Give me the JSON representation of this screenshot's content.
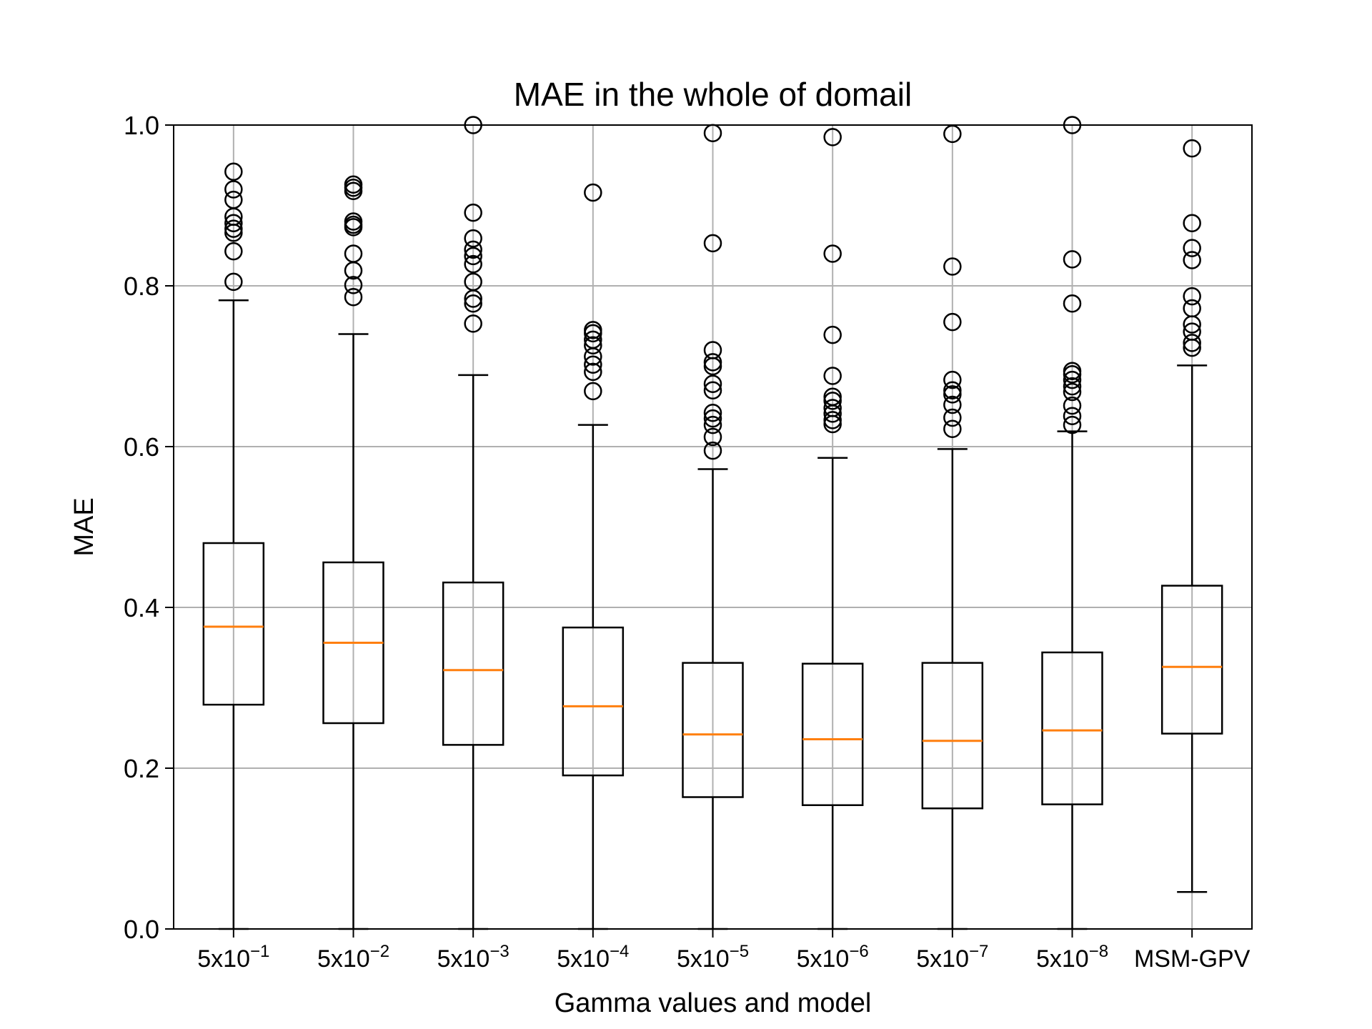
{
  "chart_data": {
    "type": "box",
    "title": "MAE in the whole of domail",
    "xlabel": "Gamma values and model",
    "ylabel": "MAE",
    "ylim": [
      0.0,
      1.0
    ],
    "yticks": [
      "0.0",
      "0.2",
      "0.4",
      "0.6",
      "0.8",
      "1.0"
    ],
    "grid": true,
    "colors": {
      "box": "#000000",
      "median": "#ff7f0e",
      "grid": "#b0b0b0"
    },
    "categories": [
      {
        "base": "5x10",
        "exp": "−1"
      },
      {
        "base": "5x10",
        "exp": "−2"
      },
      {
        "base": "5x10",
        "exp": "−3"
      },
      {
        "base": "5x10",
        "exp": "−4"
      },
      {
        "base": "5x10",
        "exp": "−5"
      },
      {
        "base": "5x10",
        "exp": "−6"
      },
      {
        "base": "5x10",
        "exp": "−7"
      },
      {
        "base": "5x10",
        "exp": "−8"
      },
      {
        "base": "MSM-GPV",
        "exp": ""
      }
    ],
    "boxes": [
      {
        "whislo": 0.0,
        "q1": 0.279,
        "med": 0.376,
        "q3": 0.48,
        "whishi": 0.782,
        "fliers": [
          0.805,
          0.843,
          0.866,
          0.871,
          0.878,
          0.886,
          0.907,
          0.92,
          0.942
        ]
      },
      {
        "whislo": 0.0,
        "q1": 0.256,
        "med": 0.356,
        "q3": 0.456,
        "whishi": 0.74,
        "fliers": [
          0.786,
          0.801,
          0.819,
          0.84,
          0.873,
          0.876,
          0.88,
          0.918,
          0.922,
          0.926
        ]
      },
      {
        "whislo": 0.0,
        "q1": 0.229,
        "med": 0.322,
        "q3": 0.431,
        "whishi": 0.689,
        "fliers": [
          0.753,
          0.778,
          0.784,
          0.805,
          0.827,
          0.837,
          0.845,
          0.859,
          0.891,
          1.0
        ]
      },
      {
        "whislo": 0.0,
        "q1": 0.191,
        "med": 0.277,
        "q3": 0.375,
        "whishi": 0.627,
        "fliers": [
          0.669,
          0.693,
          0.702,
          0.712,
          0.726,
          0.733,
          0.741,
          0.745,
          0.916
        ]
      },
      {
        "whislo": 0.0,
        "q1": 0.164,
        "med": 0.242,
        "q3": 0.331,
        "whishi": 0.572,
        "fliers": [
          0.595,
          0.612,
          0.627,
          0.635,
          0.642,
          0.67,
          0.678,
          0.7,
          0.705,
          0.72,
          0.853,
          0.99
        ]
      },
      {
        "whislo": 0.0,
        "q1": 0.154,
        "med": 0.236,
        "q3": 0.33,
        "whishi": 0.586,
        "fliers": [
          0.628,
          0.633,
          0.641,
          0.648,
          0.657,
          0.662,
          0.688,
          0.739,
          0.84,
          0.985
        ]
      },
      {
        "whislo": 0.0,
        "q1": 0.15,
        "med": 0.234,
        "q3": 0.331,
        "whishi": 0.597,
        "fliers": [
          0.622,
          0.636,
          0.652,
          0.665,
          0.67,
          0.683,
          0.755,
          0.824,
          0.989
        ]
      },
      {
        "whislo": 0.0,
        "q1": 0.155,
        "med": 0.247,
        "q3": 0.344,
        "whishi": 0.619,
        "fliers": [
          0.627,
          0.638,
          0.651,
          0.668,
          0.675,
          0.683,
          0.69,
          0.694,
          0.778,
          0.833,
          1.0
        ]
      },
      {
        "whislo": 0.046,
        "q1": 0.243,
        "med": 0.326,
        "q3": 0.427,
        "whishi": 0.701,
        "fliers": [
          0.723,
          0.729,
          0.743,
          0.752,
          0.772,
          0.787,
          0.832,
          0.847,
          0.878,
          0.971
        ]
      }
    ]
  }
}
